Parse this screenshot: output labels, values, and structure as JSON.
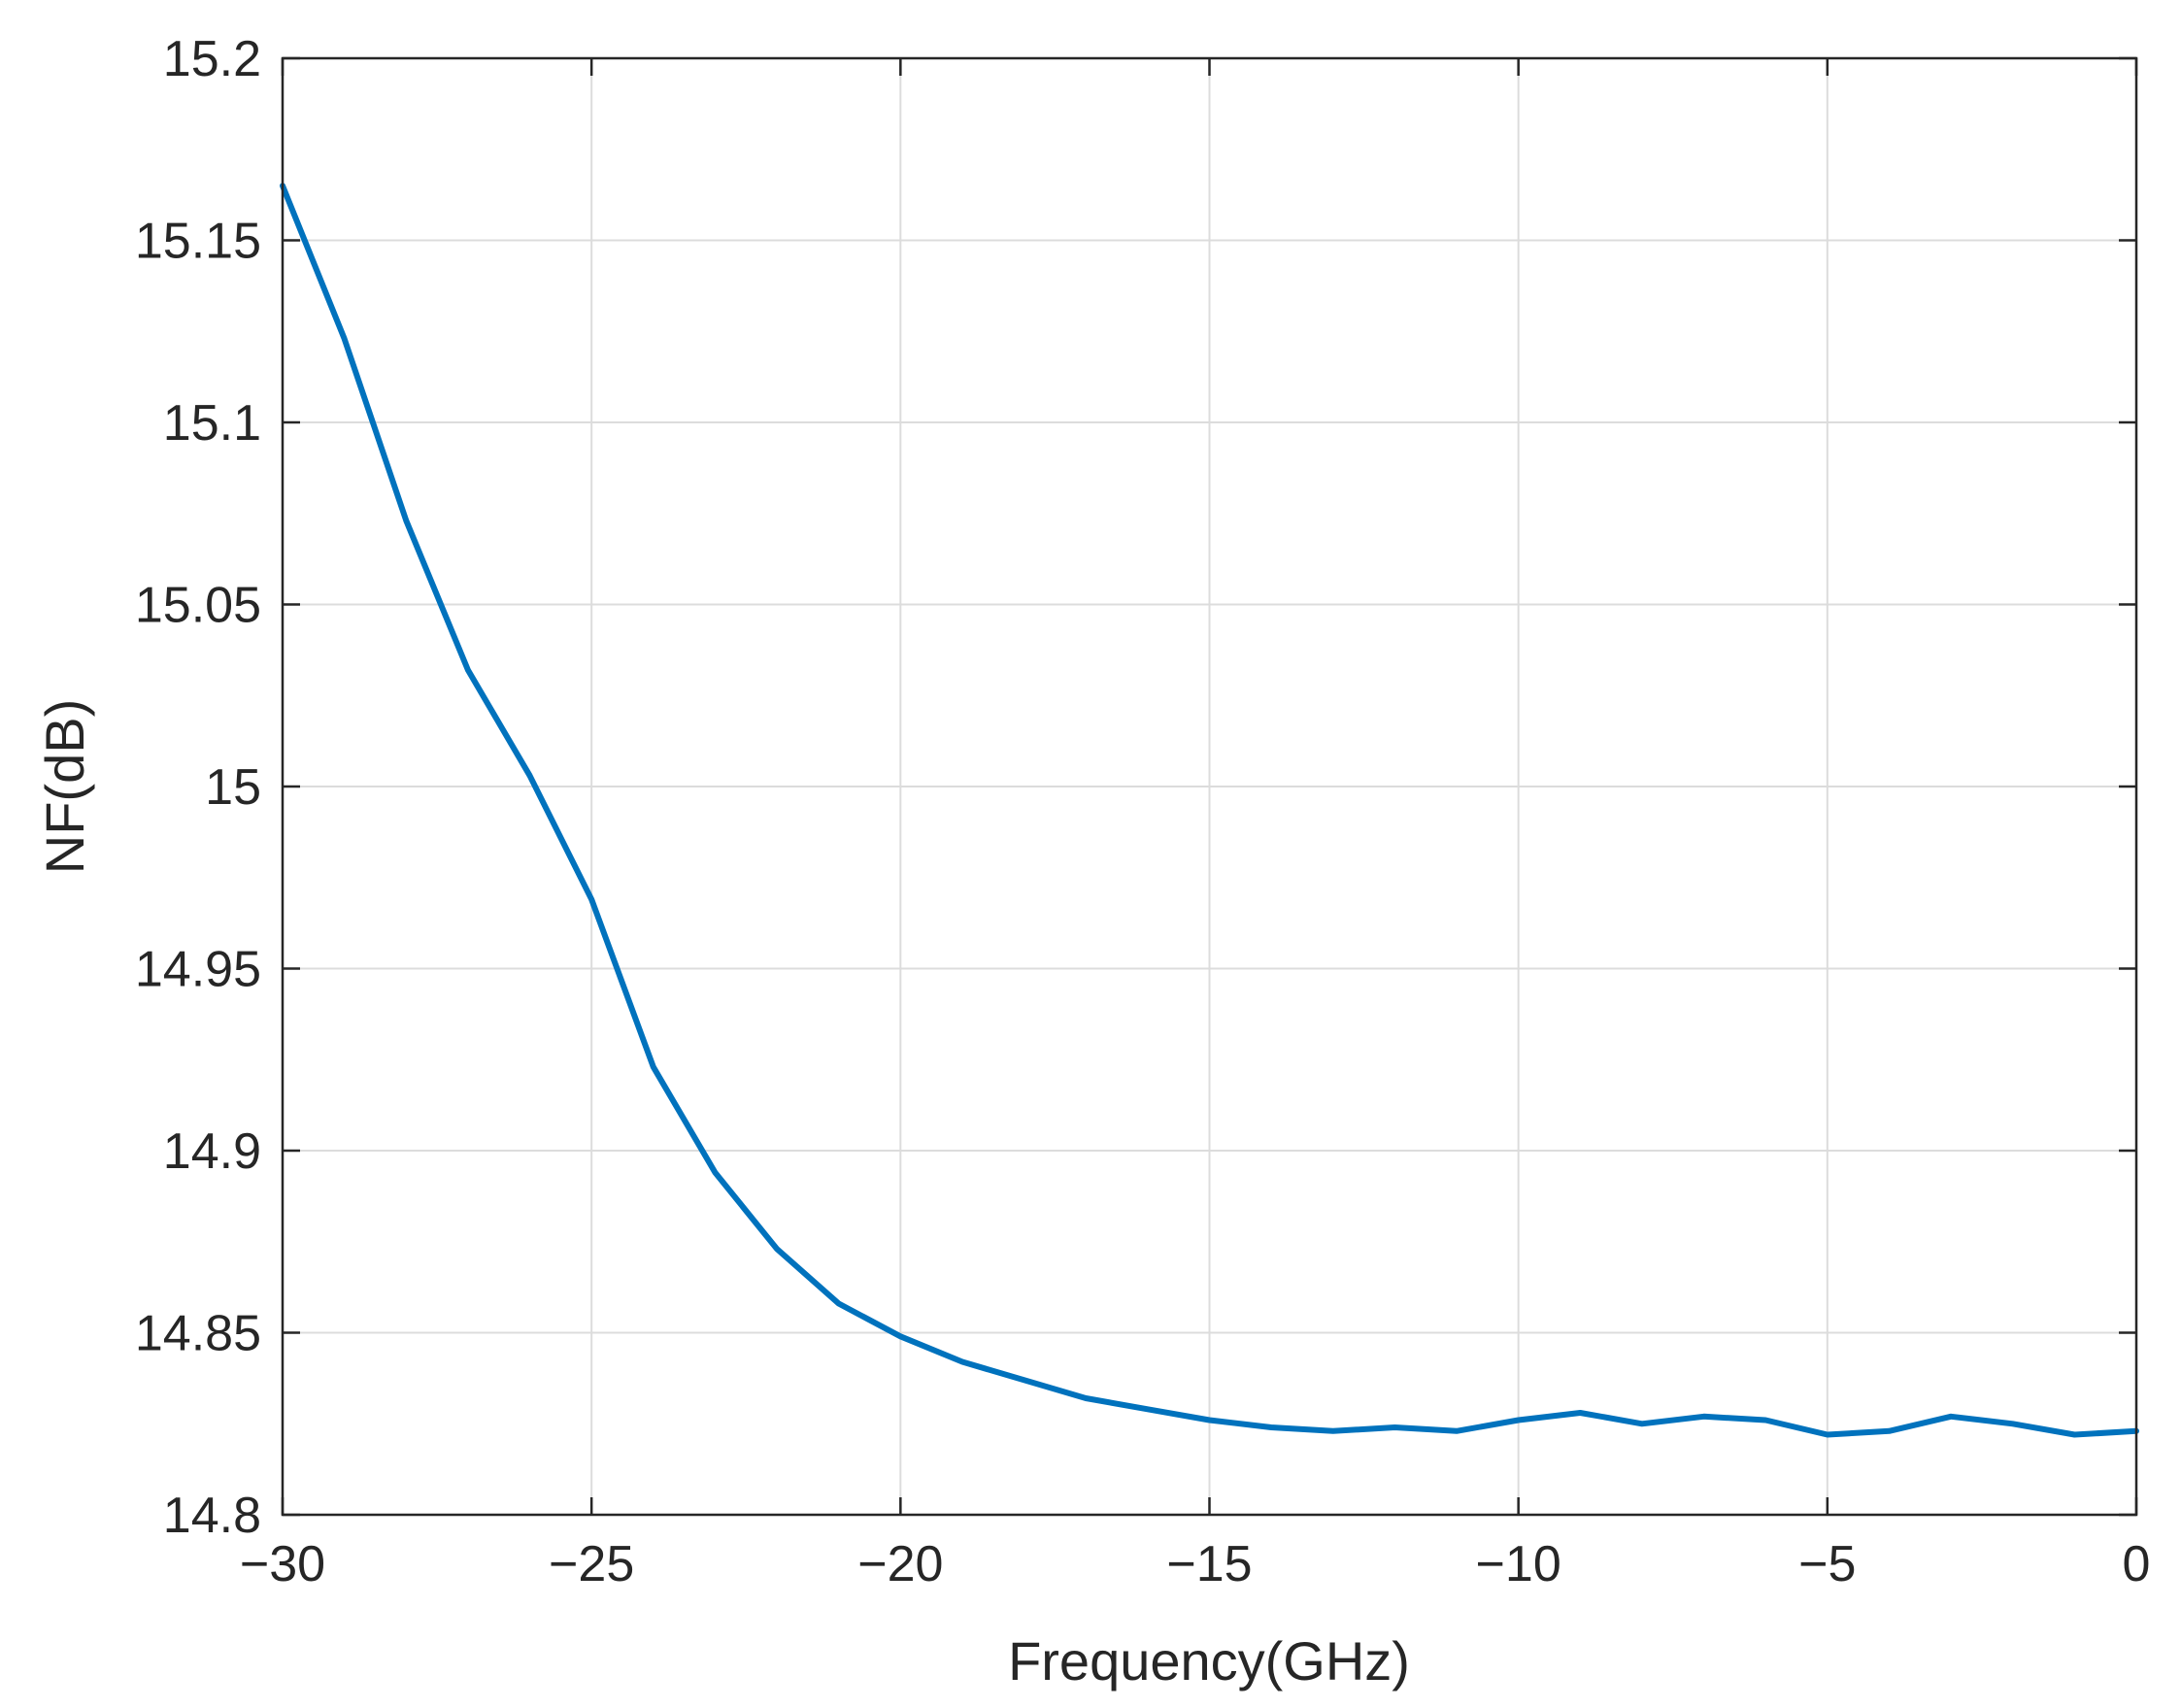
{
  "chart_data": {
    "type": "line",
    "title": "",
    "xlabel": "Frequency(GHz)",
    "ylabel": "NF(dB)",
    "xlim": [
      -30,
      0
    ],
    "ylim": [
      14.8,
      15.2
    ],
    "grid": true,
    "x_ticks": [
      -30,
      -25,
      -20,
      -15,
      -10,
      -5,
      0
    ],
    "x_tick_labels": [
      "−30",
      "−25",
      "−20",
      "−15",
      "−10",
      "−5",
      "0"
    ],
    "y_ticks": [
      14.8,
      14.85,
      14.9,
      14.95,
      15.0,
      15.05,
      15.1,
      15.15,
      15.2
    ],
    "y_tick_labels": [
      "14.8",
      "14.85",
      "14.9",
      "14.95",
      "15",
      "15.05",
      "15.1",
      "15.15",
      "15.2"
    ],
    "series": [
      {
        "color": "#0072BD",
        "x": [
          -30,
          -29,
          -28,
          -27,
          -26,
          -25,
          -24,
          -23,
          -22,
          -21,
          -20,
          -19,
          -18,
          -17,
          -16,
          -15,
          -14,
          -13,
          -12,
          -11,
          -10,
          -9,
          -8,
          -7,
          -6,
          -5,
          -4,
          -3,
          -2,
          -1,
          0
        ],
        "values": [
          15.165,
          15.123,
          15.073,
          15.032,
          15.003,
          14.969,
          14.923,
          14.894,
          14.873,
          14.858,
          14.849,
          14.842,
          14.837,
          14.832,
          14.829,
          14.826,
          14.824,
          14.823,
          14.824,
          14.823,
          14.826,
          14.828,
          14.825,
          14.827,
          14.826,
          14.822,
          14.823,
          14.827,
          14.825,
          14.822,
          14.823
        ]
      }
    ]
  }
}
